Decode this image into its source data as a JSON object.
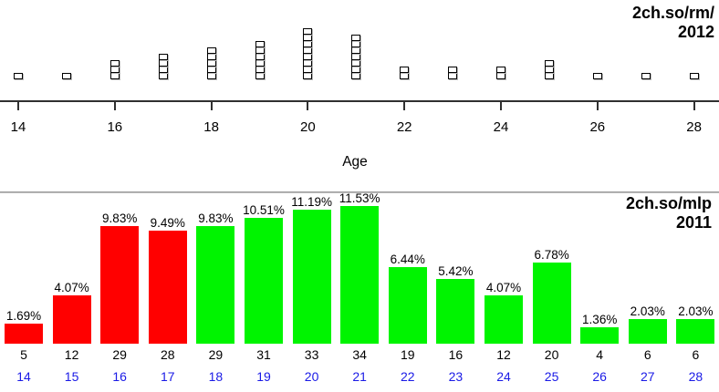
{
  "top_panel": {
    "watermark_line1": "2ch.so/rm/",
    "watermark_line2": "2012",
    "xlabel": "Age"
  },
  "bottom_panel": {
    "watermark_line1": "2ch.so/mlp",
    "watermark_line2": "2011"
  },
  "colors": {
    "bar_red": "#ff0000",
    "bar_green": "#00f400",
    "age_label_blue": "#1a1ae6",
    "axis_dark": "#303030",
    "separator_gray": "#999999"
  },
  "chart_data": [
    {
      "type": "scatter",
      "subtype": "stacked-dotplot",
      "title": "2ch.so/rm/ 2012",
      "xlabel": "Age",
      "marker": "open-square",
      "x": [
        14,
        15,
        16,
        17,
        18,
        19,
        20,
        21,
        22,
        23,
        24,
        25,
        26,
        27,
        28
      ],
      "counts": [
        1,
        1,
        3,
        4,
        5,
        6,
        8,
        7,
        2,
        2,
        2,
        3,
        1,
        1,
        1
      ],
      "xticks": [
        14,
        16,
        18,
        20,
        22,
        24,
        26,
        28
      ],
      "grid": false,
      "legend": false
    },
    {
      "type": "bar",
      "title": "2ch.so/mlp 2011",
      "categories": [
        14,
        15,
        16,
        17,
        18,
        19,
        20,
        21,
        22,
        23,
        24,
        25,
        26,
        27,
        28
      ],
      "values": [
        1.69,
        4.07,
        9.83,
        9.49,
        9.83,
        10.51,
        11.19,
        11.53,
        6.44,
        5.42,
        4.07,
        6.78,
        1.36,
        2.03,
        2.03
      ],
      "value_labels": [
        "1.69%",
        "4.07%",
        "9.83%",
        "9.49%",
        "9.83%",
        "10.51%",
        "11.19%",
        "11.53%",
        "6.44%",
        "5.42%",
        "4.07%",
        "6.78%",
        "1.36%",
        "2.03%",
        "2.03%"
      ],
      "counts": [
        5,
        12,
        29,
        28,
        29,
        31,
        33,
        34,
        19,
        16,
        12,
        20,
        4,
        6,
        6
      ],
      "bar_colors": [
        "red",
        "red",
        "red",
        "red",
        "green",
        "green",
        "green",
        "green",
        "green",
        "green",
        "green",
        "green",
        "green",
        "green",
        "green"
      ],
      "ylim": [
        0,
        12
      ],
      "grid": false,
      "legend": false
    }
  ]
}
